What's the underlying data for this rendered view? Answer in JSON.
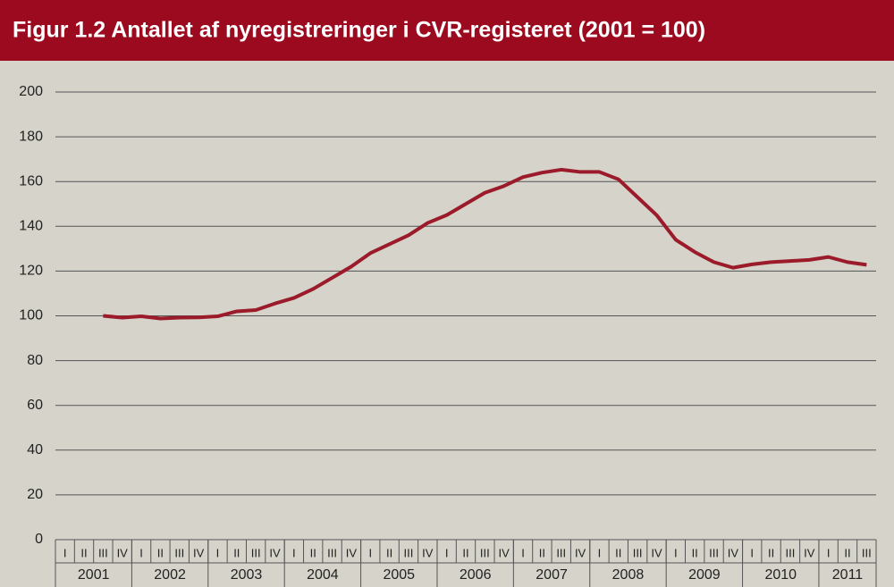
{
  "chart_data": {
    "type": "line",
    "title": "Figur 1.2 Antallet af nyregistreringer i CVR-registeret (2001 = 100)",
    "categories": [
      "I",
      "II",
      "III",
      "IV",
      "I",
      "II",
      "III",
      "IV",
      "I",
      "II",
      "III",
      "IV",
      "I",
      "II",
      "III",
      "IV",
      "I",
      "II",
      "III",
      "IV",
      "I",
      "II",
      "III",
      "IV",
      "I",
      "II",
      "III",
      "IV",
      "I",
      "II",
      "III",
      "IV",
      "I",
      "II",
      "III",
      "IV",
      "I",
      "II",
      "III",
      "IV",
      "I",
      "II",
      "III"
    ],
    "years": [
      "2001",
      "2002",
      "2003",
      "2004",
      "2005",
      "2006",
      "2007",
      "2008",
      "2009",
      "2010",
      "2011"
    ],
    "series": [
      {
        "color": "#9b1b2a",
        "values": [
          null,
          null,
          100,
          99.2,
          99.8,
          98.8,
          99.2,
          99.3,
          99.8,
          102,
          102.6,
          105.5,
          108,
          112,
          117,
          122,
          128,
          132,
          136,
          141.5,
          145,
          150,
          155,
          158,
          162,
          164,
          165.3,
          164.3,
          164.3,
          161,
          153,
          145,
          134,
          128.5,
          124,
          121.5,
          123,
          124,
          124.5,
          125,
          126.3,
          124,
          122.8
        ]
      }
    ],
    "ylim": [
      0,
      200
    ],
    "yticks": [
      0,
      20,
      40,
      60,
      80,
      100,
      120,
      140,
      160,
      180,
      200
    ],
    "grid": true
  }
}
